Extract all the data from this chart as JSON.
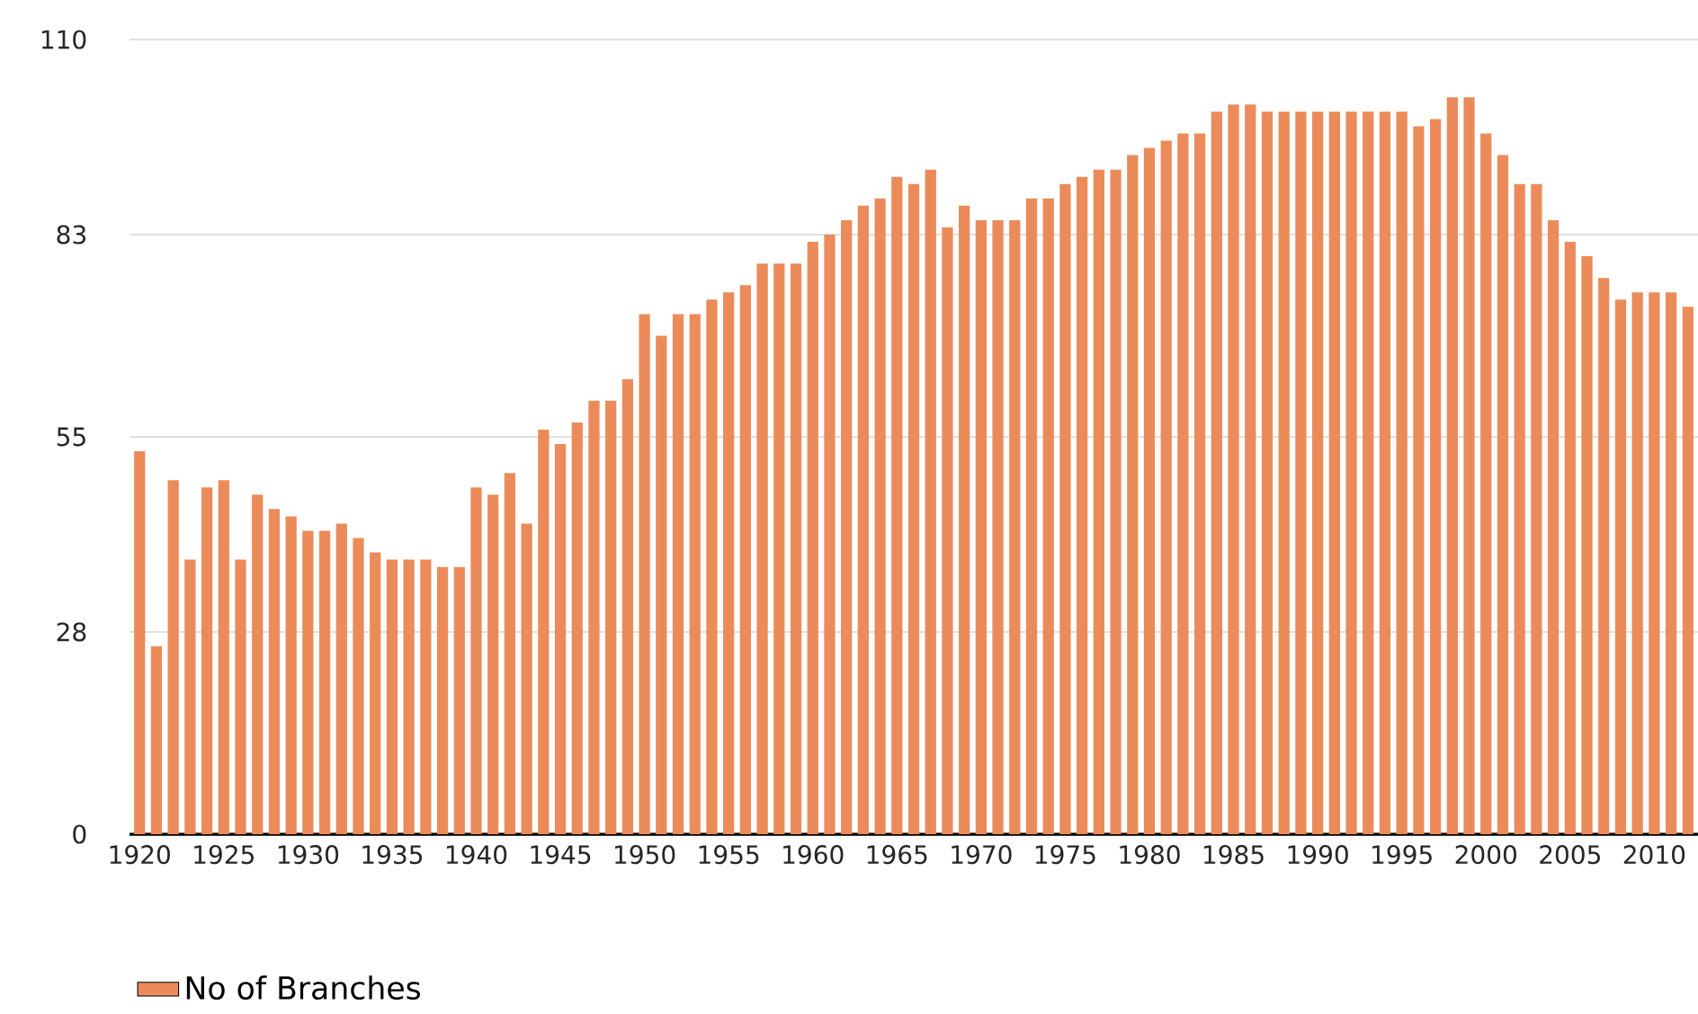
{
  "chart_data": {
    "type": "bar",
    "categories": [
      "1920",
      null,
      null,
      null,
      null,
      "1925",
      null,
      null,
      null,
      null,
      "1930",
      null,
      null,
      null,
      null,
      "1935",
      null,
      null,
      null,
      null,
      "1940",
      null,
      null,
      null,
      null,
      "1945",
      null,
      null,
      null,
      null,
      "1950",
      null,
      null,
      null,
      null,
      "1955",
      null,
      null,
      null,
      null,
      "1960",
      null,
      null,
      null,
      null,
      "1965",
      null,
      null,
      null,
      null,
      "1970",
      null,
      null,
      null,
      null,
      "1975",
      null,
      null,
      null,
      null,
      "1980",
      null,
      null,
      null,
      null,
      "1985",
      null,
      null,
      null,
      null,
      "1990",
      null,
      null,
      null,
      null,
      "1995",
      null,
      null,
      null,
      null,
      "2000",
      null,
      null,
      null,
      null,
      "2005",
      null,
      null,
      null,
      null,
      "2010",
      null,
      null
    ],
    "series": [
      {
        "name": "No of Branches",
        "color": "#ec8b5a",
        "values": [
          53,
          26,
          49,
          38,
          48,
          49,
          38,
          47,
          45,
          44,
          42,
          42,
          43,
          41,
          39,
          38,
          38,
          38,
          37,
          37,
          48,
          47,
          50,
          43,
          56,
          54,
          57,
          60,
          60,
          63,
          72,
          69,
          72,
          72,
          74,
          75,
          76,
          79,
          79,
          79,
          82,
          83,
          85,
          87,
          88,
          91,
          90,
          92,
          84,
          87,
          85,
          85,
          85,
          88,
          88,
          90,
          91,
          92,
          92,
          94,
          95,
          96,
          97,
          97,
          100,
          101,
          101,
          100,
          100,
          100,
          100,
          100,
          100,
          100,
          100,
          100,
          98,
          99,
          102,
          102,
          97,
          94,
          90,
          90,
          85,
          82,
          80,
          77,
          74,
          75,
          75,
          75,
          73
        ]
      }
    ],
    "ylim": [
      0,
      110
    ],
    "yticks": [
      0,
      28,
      55,
      83,
      110
    ],
    "grid": "y",
    "legend": "bottom"
  }
}
